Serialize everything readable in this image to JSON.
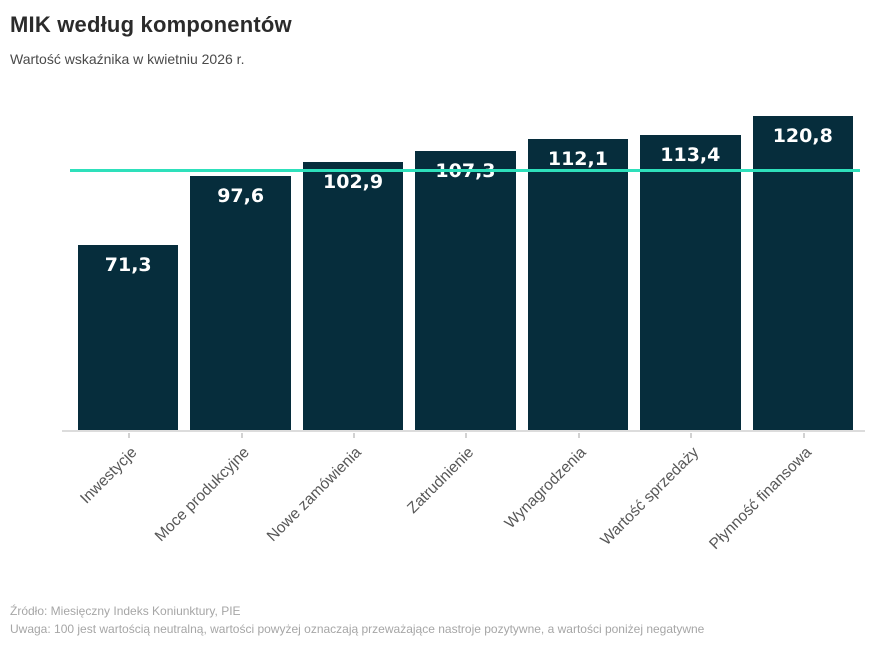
{
  "header": {
    "title": "MIK według komponentów",
    "subtitle": "Wartość wskaźnika w kwietniu 2026 r."
  },
  "chart_data": {
    "type": "bar",
    "title": "MIK według komponentów",
    "subtitle": "Wartość wskaźnika w kwietniu 2026 r.",
    "categories": [
      "Inwestycje",
      "Moce produkcyjne",
      "Nowe zamówienia",
      "Zatrudnienie",
      "Wynagrodzenia",
      "Wartość sprzedaży",
      "Płynność finansowa"
    ],
    "values": [
      71.3,
      97.6,
      102.9,
      107.3,
      112.1,
      113.4,
      120.8
    ],
    "value_labels": [
      "71,3",
      "97,6",
      "102,9",
      "107,3",
      "112,1",
      "113,4",
      "120,8"
    ],
    "bar_color": "#062d3c",
    "value_label_color": "#ffffff",
    "reference_line": {
      "value": 100,
      "color": "#2ee0bb"
    },
    "ylim": [
      0,
      127
    ],
    "grid": false,
    "legend": false,
    "x_tick_rotation_deg": 45
  },
  "footer": {
    "source": "Źródło: Miesięczny Indeks Koniunktury, PIE",
    "note": "Uwaga: 100 jest wartością neutralną, wartości powyżej oznaczają przeważające nastroje pozytywne, a wartości poniżej negatywne"
  }
}
